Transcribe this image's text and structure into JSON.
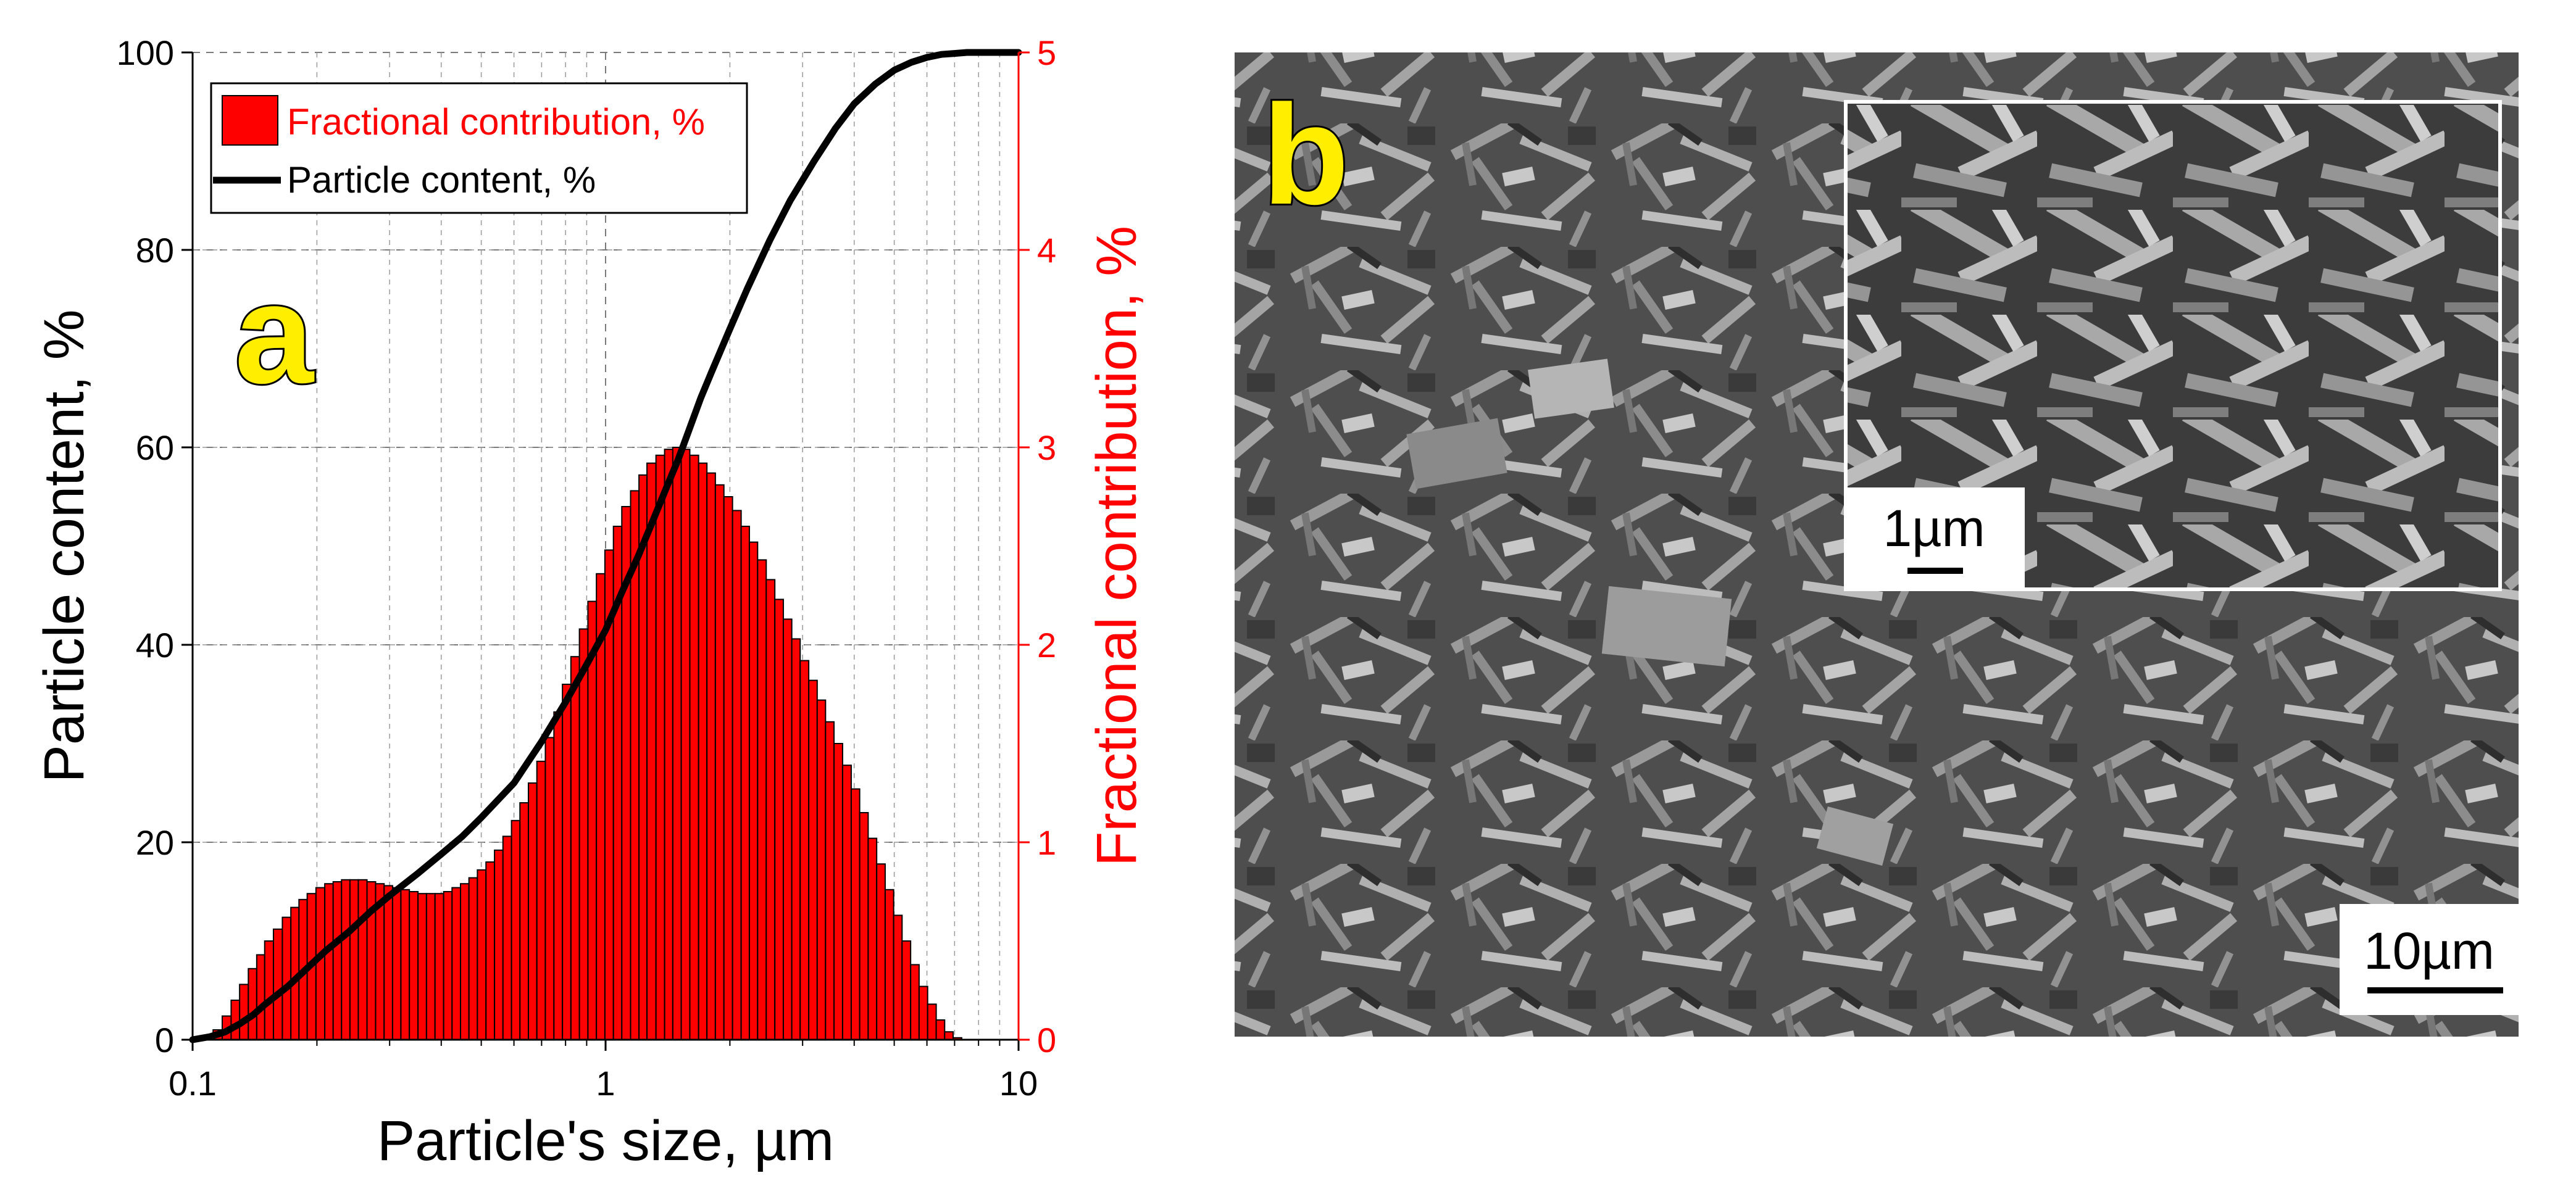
{
  "chart_data": {
    "type": "bar",
    "panel_label": "a",
    "xlabel": "Particle's size, µm",
    "ylabel_left": "Particle content, %",
    "ylabel_right": "Fractional contribution, %",
    "x_scale": "log",
    "xlim": [
      0.1,
      10
    ],
    "ylim_left": [
      0,
      100
    ],
    "ylim_right": [
      0,
      5
    ],
    "x_ticks": [
      "0.1",
      "1",
      "10"
    ],
    "x_tick_values": [
      0.1,
      1,
      10
    ],
    "y_ticks_left": [
      "0",
      "20",
      "40",
      "60",
      "80",
      "100"
    ],
    "y_tick_values_left": [
      0,
      20,
      40,
      60,
      80,
      100
    ],
    "y_ticks_right": [
      "0",
      "1",
      "2",
      "3",
      "4",
      "5"
    ],
    "y_tick_values_right": [
      0,
      1,
      2,
      3,
      4,
      5
    ],
    "grid": true,
    "legend_position": "top-left",
    "legend": [
      {
        "label": "Fractional contribution, %",
        "color": "#ff0000",
        "kind": "bar"
      },
      {
        "label": "Particle content, %",
        "color": "#000000",
        "kind": "line"
      }
    ],
    "series": [
      {
        "name": "Fractional contribution, %",
        "axis": "right",
        "kind": "bar",
        "color": "#ff0000",
        "x": [
          0.115,
          0.121,
          0.127,
          0.133,
          0.14,
          0.146,
          0.153,
          0.161,
          0.169,
          0.177,
          0.185,
          0.194,
          0.204,
          0.214,
          0.224,
          0.235,
          0.246,
          0.258,
          0.271,
          0.284,
          0.298,
          0.312,
          0.327,
          0.343,
          0.36,
          0.377,
          0.396,
          0.415,
          0.435,
          0.456,
          0.478,
          0.501,
          0.526,
          0.551,
          0.578,
          0.606,
          0.635,
          0.666,
          0.698,
          0.732,
          0.768,
          0.805,
          0.844,
          0.885,
          0.928,
          0.973,
          1.02,
          1.07,
          1.12,
          1.18,
          1.23,
          1.29,
          1.36,
          1.42,
          1.49,
          1.56,
          1.64,
          1.72,
          1.8,
          1.89,
          1.98,
          2.08,
          2.18,
          2.28,
          2.39,
          2.51,
          2.63,
          2.76,
          2.89,
          3.03,
          3.18,
          3.33,
          3.49,
          3.66,
          3.84,
          4.03,
          4.22,
          4.43,
          4.64,
          4.87,
          5.1,
          5.35,
          5.61,
          5.88,
          6.17,
          6.47,
          6.78,
          7.11,
          7.46,
          7.82,
          8.2,
          8.6
        ],
        "values": [
          0.05,
          0.12,
          0.2,
          0.28,
          0.36,
          0.43,
          0.5,
          0.56,
          0.62,
          0.67,
          0.71,
          0.74,
          0.77,
          0.79,
          0.8,
          0.81,
          0.81,
          0.81,
          0.8,
          0.79,
          0.78,
          0.77,
          0.76,
          0.75,
          0.74,
          0.74,
          0.74,
          0.75,
          0.77,
          0.79,
          0.82,
          0.86,
          0.9,
          0.96,
          1.03,
          1.11,
          1.2,
          1.3,
          1.41,
          1.53,
          1.66,
          1.8,
          1.94,
          2.08,
          2.22,
          2.36,
          2.48,
          2.6,
          2.7,
          2.78,
          2.86,
          2.92,
          2.96,
          2.99,
          3.0,
          2.99,
          2.96,
          2.92,
          2.87,
          2.81,
          2.75,
          2.68,
          2.6,
          2.52,
          2.43,
          2.33,
          2.23,
          2.13,
          2.03,
          1.92,
          1.82,
          1.72,
          1.61,
          1.5,
          1.39,
          1.27,
          1.15,
          1.02,
          0.89,
          0.76,
          0.63,
          0.5,
          0.38,
          0.27,
          0.18,
          0.1,
          0.04,
          0.01,
          0.0,
          0.0,
          0.0,
          0.0
        ]
      },
      {
        "name": "Particle content, %",
        "axis": "left",
        "kind": "line",
        "color": "#000000",
        "x": [
          0.1,
          0.11,
          0.12,
          0.13,
          0.14,
          0.15,
          0.17,
          0.19,
          0.21,
          0.24,
          0.27,
          0.3,
          0.35,
          0.4,
          0.45,
          0.5,
          0.6,
          0.7,
          0.8,
          0.9,
          1.0,
          1.1,
          1.2,
          1.3,
          1.4,
          1.5,
          1.6,
          1.7,
          1.8,
          2.0,
          2.2,
          2.5,
          2.8,
          3.2,
          3.6,
          4.0,
          4.5,
          5.0,
          5.5,
          6.0,
          6.5,
          7.0,
          7.5,
          8.0,
          8.5,
          9.0,
          10.0
        ],
        "values": [
          0,
          0.3,
          0.8,
          1.6,
          2.5,
          3.6,
          5.4,
          7.3,
          9.0,
          11.0,
          13.0,
          14.6,
          16.8,
          18.8,
          20.6,
          22.5,
          26.0,
          30.2,
          34.2,
          38.0,
          41.5,
          45.5,
          49.0,
          52.5,
          55.8,
          58.8,
          62.0,
          65.0,
          67.5,
          72.0,
          76.0,
          81.0,
          85.0,
          89.0,
          92.3,
          94.8,
          96.8,
          98.2,
          99.0,
          99.5,
          99.8,
          99.9,
          100,
          100,
          100,
          100,
          100
        ]
      }
    ]
  },
  "photo": {
    "panel_label": "b",
    "inset_scale_label": "1µm",
    "main_scale_label": "10µm"
  }
}
